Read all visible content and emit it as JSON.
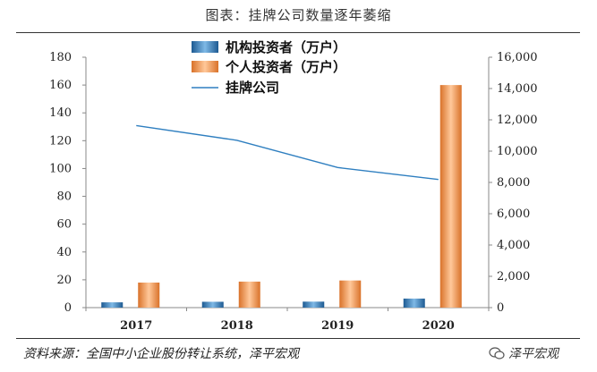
{
  "header": {
    "title": "图表：挂牌公司数量逐年萎缩"
  },
  "footer": {
    "source": "资料来源：全国中小企业股份转让系统，泽平宏观",
    "watermark": "泽平宏观"
  },
  "colors": {
    "bar_institutional": "#3d86c0",
    "bar_individual": "#f0923d",
    "line_companies": "#2f7fc0",
    "axis": "#888888"
  },
  "chart_data": {
    "type": "bar+line",
    "title": "挂牌公司数量逐年萎缩",
    "categories": [
      "2017",
      "2018",
      "2019",
      "2020"
    ],
    "y_left": {
      "min": 0,
      "max": 180,
      "step": 20,
      "ticks": [
        "0",
        "20",
        "40",
        "60",
        "80",
        "100",
        "120",
        "140",
        "160",
        "180"
      ]
    },
    "y_right": {
      "min": 0,
      "max": 16000,
      "step": 2000,
      "ticks": [
        "0",
        "2,000",
        "4,000",
        "6,000",
        "8,000",
        "10,000",
        "12,000",
        "14,000",
        "16,000"
      ]
    },
    "series": [
      {
        "name": "机构投资者（万户）",
        "type": "bar",
        "axis": "left",
        "values": [
          3.8,
          4.2,
          4.3,
          6.5
        ]
      },
      {
        "name": "个人投资者（万户）",
        "type": "bar",
        "axis": "left",
        "values": [
          18.0,
          18.7,
          19.5,
          160.0
        ]
      },
      {
        "name": "挂牌公司",
        "type": "line",
        "axis": "right",
        "values": [
          11630,
          10691,
          8953,
          8187
        ]
      }
    ],
    "legend": "top-center",
    "grid": false
  }
}
